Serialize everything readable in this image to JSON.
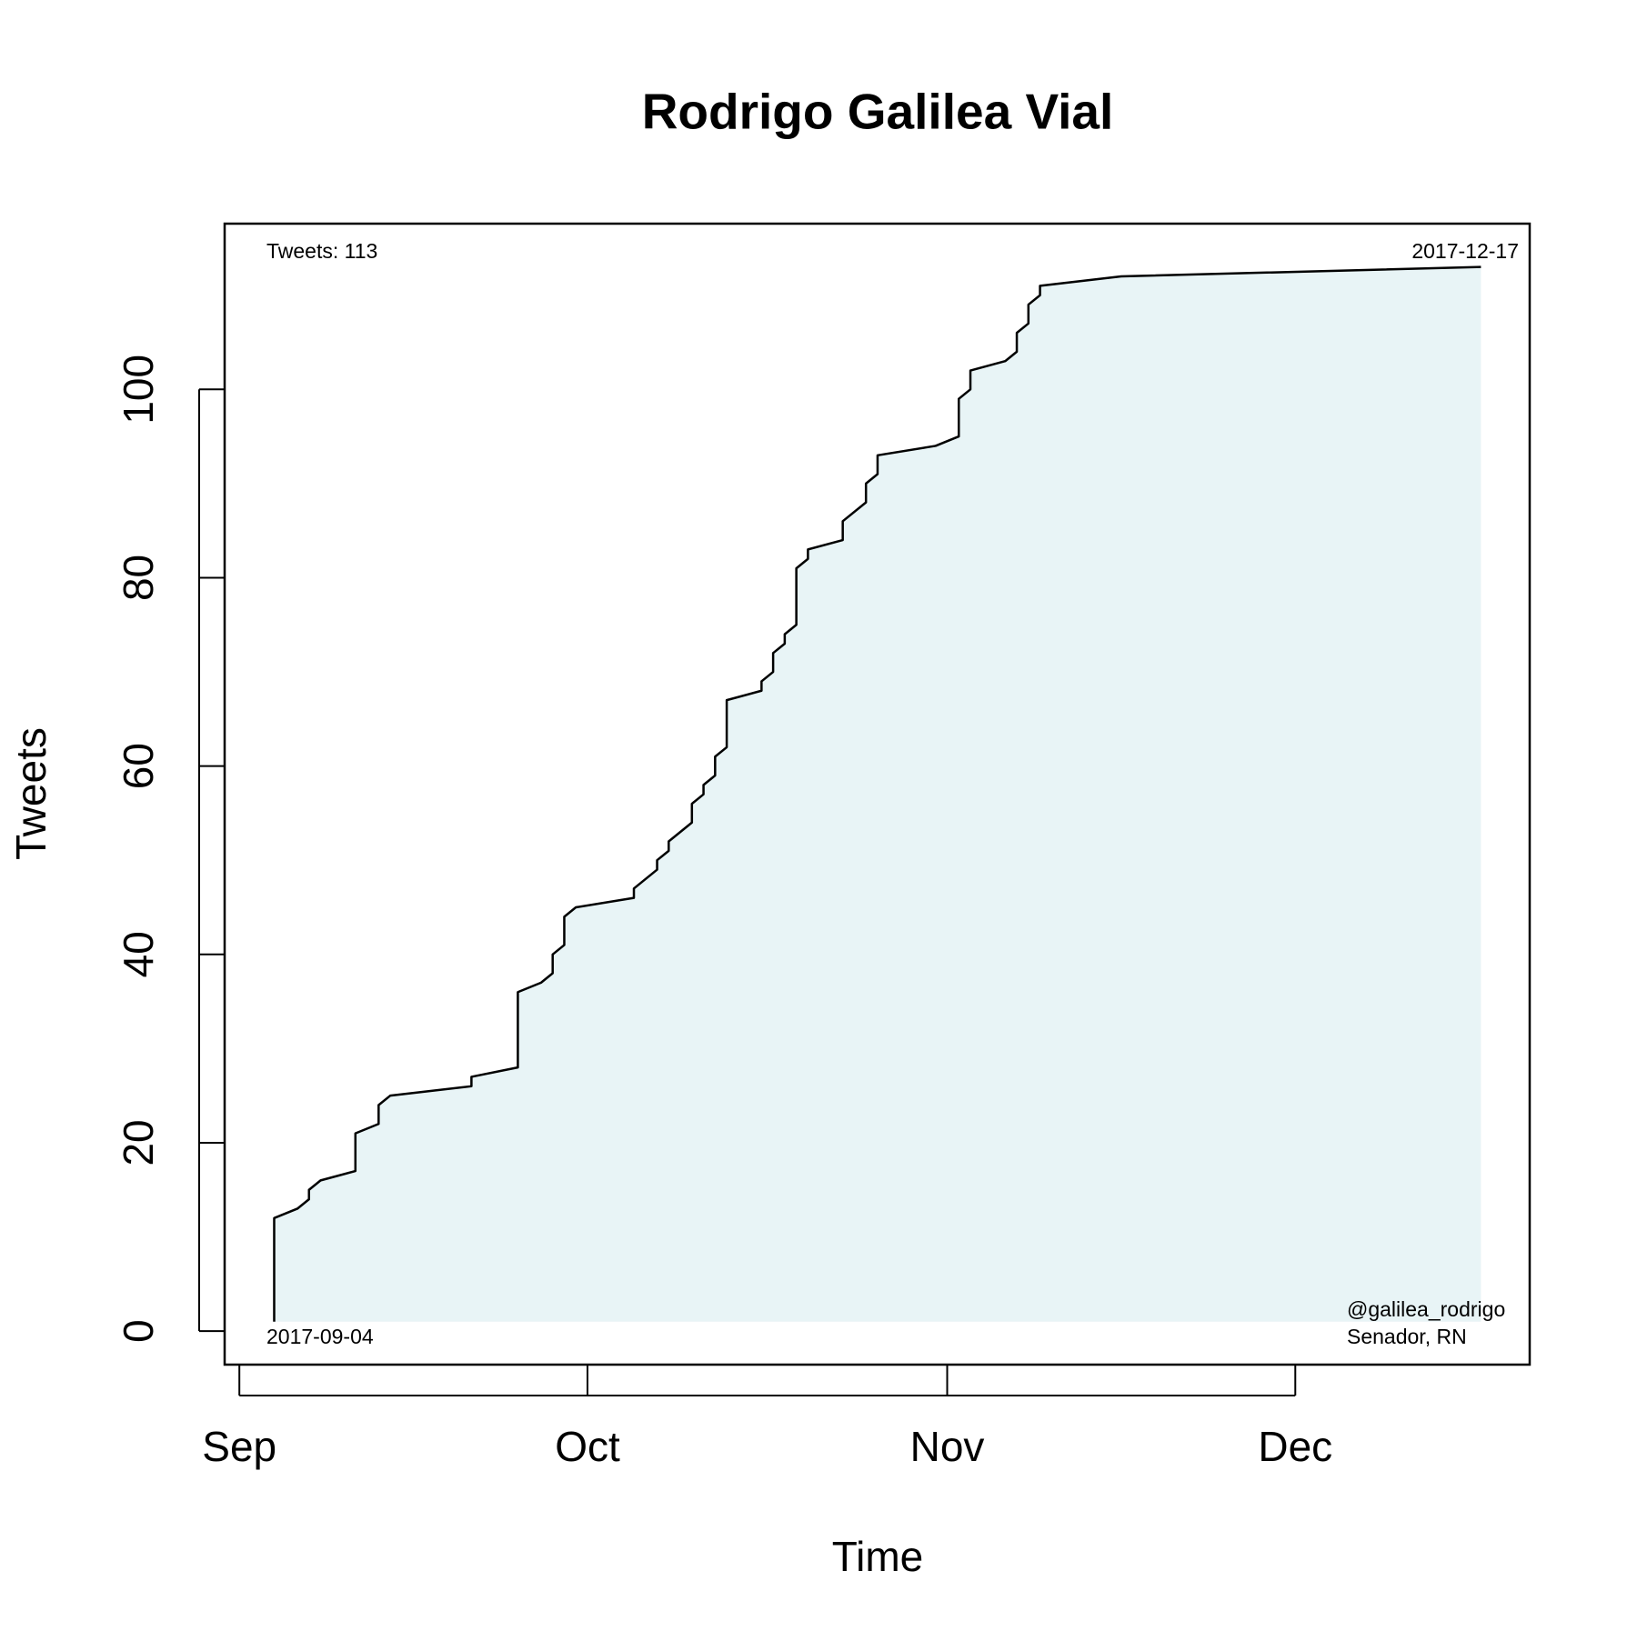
{
  "chart_data": {
    "type": "line",
    "title": "Rodrigo Galilea Vial",
    "x_label": "Time",
    "y_label": "Tweets",
    "annotations": [
      "Tweets: 113",
      "2017-12-17",
      "2017-09-04",
      "@galilea_rodrigo",
      "Senador, RN"
    ],
    "x": [
      3,
      3,
      5,
      6,
      6,
      7,
      10,
      10,
      12,
      12,
      13,
      20,
      20,
      24,
      24,
      26,
      27,
      27,
      28,
      28,
      29,
      34,
      34,
      36,
      36,
      37,
      37,
      39,
      39,
      40,
      40,
      41,
      41,
      42,
      42,
      45,
      45,
      46,
      46,
      47,
      47,
      48,
      48,
      49,
      49,
      52,
      52,
      54,
      54,
      55,
      55,
      60,
      62,
      62,
      63,
      63,
      66,
      67,
      67,
      68,
      68,
      69,
      69,
      76,
      107
    ],
    "series": [
      {
        "color": "#000000",
        "fill": "#e8f4f6",
        "values": [
          1,
          12,
          13,
          14,
          15,
          16,
          17,
          21,
          22,
          24,
          25,
          26,
          27,
          28,
          36,
          37,
          38,
          40,
          41,
          44,
          45,
          46,
          47,
          49,
          50,
          51,
          52,
          54,
          56,
          57,
          58,
          59,
          61,
          62,
          67,
          68,
          69,
          70,
          72,
          73,
          74,
          75,
          81,
          82,
          83,
          84,
          86,
          88,
          90,
          91,
          93,
          94,
          95,
          99,
          100,
          102,
          103,
          104,
          106,
          107,
          109,
          110,
          111,
          112,
          113
        ]
      }
    ],
    "xlim": [
      -1.27,
      111.2
    ],
    "xticks": [
      {
        "value": 0,
        "label": "Sep"
      },
      {
        "value": 30,
        "label": "Oct"
      },
      {
        "value": 61,
        "label": "Nov"
      },
      {
        "value": 91,
        "label": "Dec"
      }
    ],
    "ylim": [
      -3.56,
      117.6
    ],
    "yticks": [
      0,
      20,
      40,
      60,
      80,
      100
    ],
    "grid": false
  }
}
